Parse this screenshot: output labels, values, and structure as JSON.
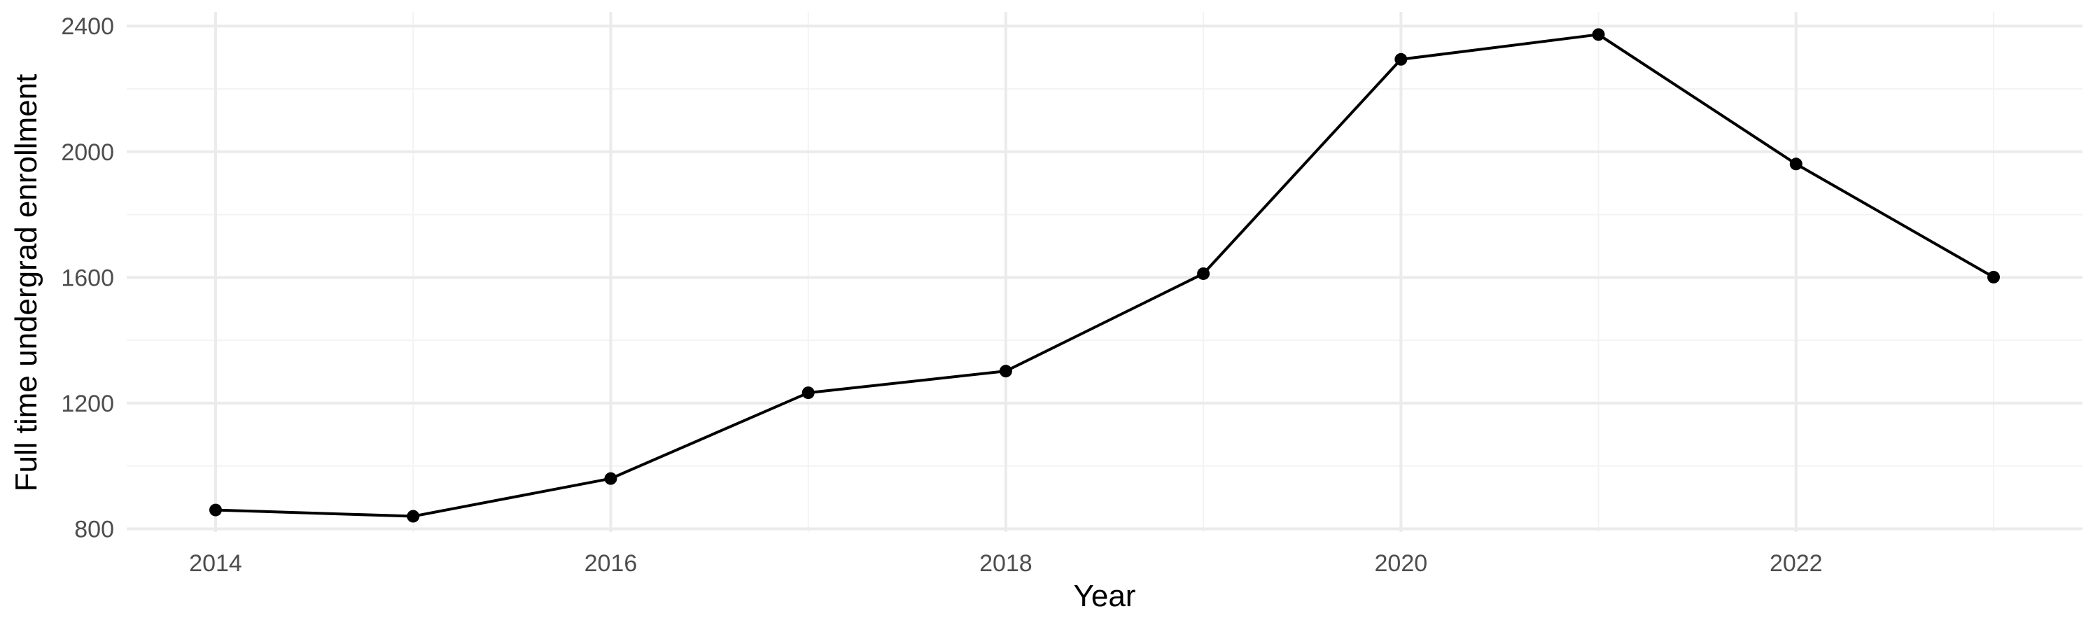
{
  "chart_data": {
    "type": "line",
    "xlabel": "Year",
    "ylabel": "Full time undergrad enrollment",
    "x": [
      2014,
      2015,
      2016,
      2017,
      2018,
      2019,
      2020,
      2021,
      2022,
      2023
    ],
    "values": [
      860,
      840,
      960,
      1233,
      1302,
      1612,
      2294,
      2373,
      1961,
      1601
    ],
    "xlim": [
      2013.55,
      2023.45
    ],
    "ylim": [
      790,
      2445
    ],
    "x_ticks": [
      2014,
      2016,
      2018,
      2020,
      2022
    ],
    "y_ticks": [
      800,
      1200,
      1600,
      2000,
      2400
    ],
    "grid": true,
    "legend": "none",
    "colors": {
      "line": "#000000",
      "points": "#000000",
      "grid_major": "#ebebeb",
      "grid_minor": "#f3f3f3",
      "tick_text": "#4d4d4d"
    }
  }
}
